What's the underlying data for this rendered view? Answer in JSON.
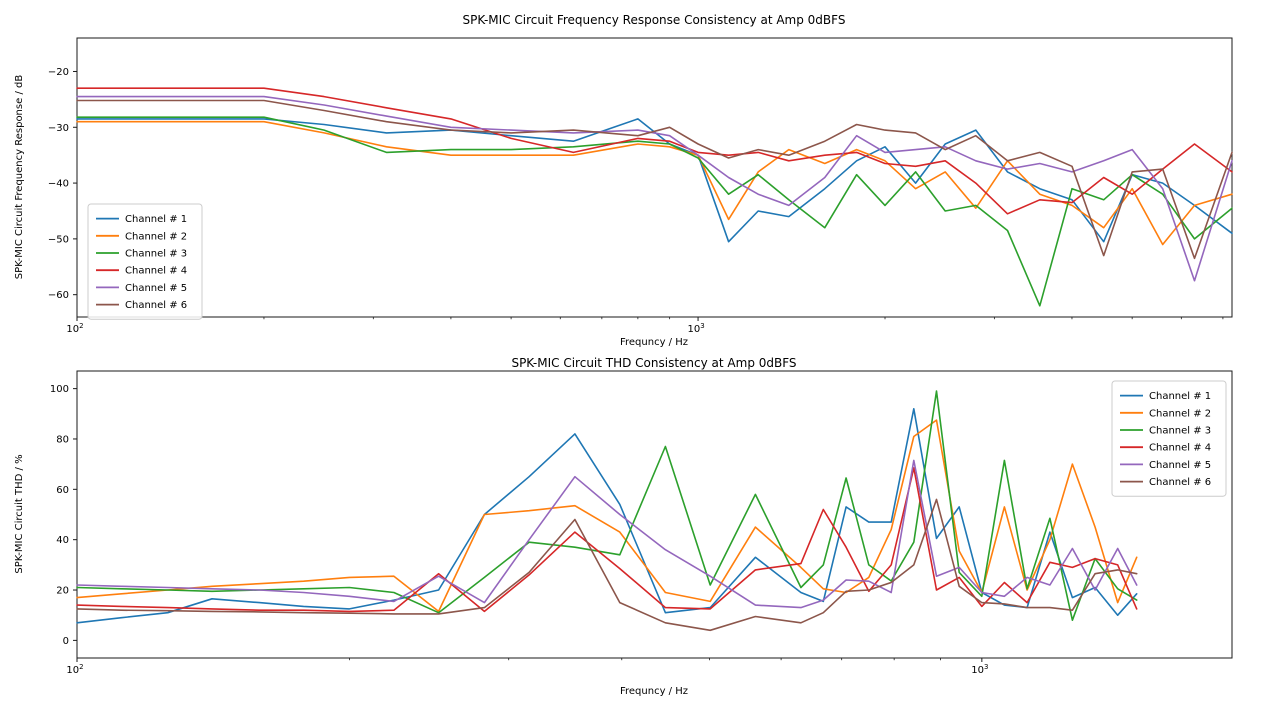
{
  "figure": {
    "background": "#ffffff",
    "text_color": "#000000",
    "spine_color": "#1a1a1a",
    "legend_border_color": "#cccccc"
  },
  "chart_data": [
    {
      "type": "line",
      "title": "SPK-MIC Circuit Frequency Response Consistency at Amp 0dBFS",
      "xlabel": "Frequncy / Hz",
      "ylabel": "SPK-MIC Circuit Frequency Response / dB",
      "xscale": "log",
      "grid": false,
      "xlim": [
        100,
        7240
      ],
      "ylim": [
        -64,
        -14
      ],
      "yticks": [
        -20,
        -30,
        -40,
        -50,
        -60
      ],
      "xticks": [
        {
          "value": 100,
          "label": "10^2"
        },
        {
          "value": 1000,
          "label": "10^3"
        }
      ],
      "legend": {
        "loc": "center left",
        "entries": [
          "Channel # 1",
          "Channel # 2",
          "Channel # 3",
          "Channel # 4",
          "Channel # 5",
          "Channel # 6"
        ]
      },
      "x": [
        100,
        125,
        160,
        200,
        250,
        315,
        400,
        500,
        630,
        800,
        900,
        1000,
        1120,
        1250,
        1400,
        1600,
        1800,
        2000,
        2240,
        2500,
        2800,
        3150,
        3550,
        4000,
        4500,
        5000,
        5600,
        6300,
        7240
      ],
      "series": [
        {
          "name": "Channel # 1",
          "color": "#1f77b4",
          "values": [
            -28.5,
            -28.5,
            -28.5,
            -28.5,
            -29.5,
            -31,
            -30.5,
            -31.5,
            -32.5,
            -28.5,
            -33,
            -35,
            -50.5,
            -45,
            -46,
            -41,
            -36,
            -33.5,
            -40,
            -33,
            -30.5,
            -38,
            -41,
            -43,
            -50.5,
            -38.5,
            -40,
            -44,
            -49
          ]
        },
        {
          "name": "Channel # 2",
          "color": "#ff7f0e",
          "values": [
            -29,
            -29,
            -29,
            -29,
            -31,
            -33.5,
            -35,
            -35,
            -35,
            -33,
            -33.5,
            -35,
            -46.5,
            -38,
            -34,
            -36.5,
            -34,
            -36,
            -41,
            -38,
            -44.5,
            -36,
            -42,
            -44,
            -48,
            -41,
            -51,
            -44,
            -42
          ]
        },
        {
          "name": "Channel # 3",
          "color": "#2ca02c",
          "values": [
            -28.2,
            -28.2,
            -28.2,
            -28.2,
            -30.5,
            -34.5,
            -34,
            -34,
            -33.5,
            -32.5,
            -33,
            -35.5,
            -42,
            -38.5,
            -43,
            -48,
            -38.5,
            -44,
            -38,
            -45,
            -44,
            -48.5,
            -62,
            -41,
            -43,
            -38.5,
            -42,
            -50,
            -44.5
          ]
        },
        {
          "name": "Channel # 4",
          "color": "#d62728",
          "values": [
            -23,
            -23,
            -23,
            -23,
            -24.5,
            -26.5,
            -28.5,
            -32,
            -34.5,
            -32,
            -32.5,
            -34.5,
            -35,
            -34.5,
            -36,
            -35,
            -34.5,
            -36.5,
            -37,
            -36,
            -40,
            -45.5,
            -43,
            -43.5,
            -39,
            -42,
            -37.5,
            -33,
            -38
          ]
        },
        {
          "name": "Channel # 5",
          "color": "#9467bd",
          "values": [
            -24.5,
            -24.5,
            -24.5,
            -24.5,
            -26,
            -28,
            -30,
            -30.5,
            -31,
            -30.5,
            -31.5,
            -35,
            -39,
            -42,
            -44,
            -39,
            -31.5,
            -34.5,
            -34,
            -33.5,
            -36,
            -37.5,
            -36.5,
            -38,
            -36,
            -34,
            -41,
            -57.5,
            -36
          ]
        },
        {
          "name": "Channel # 6",
          "color": "#8c564b",
          "values": [
            -25.2,
            -25.2,
            -25.2,
            -25.2,
            -27,
            -29,
            -30.5,
            -31,
            -30.5,
            -31.5,
            -30,
            -33,
            -35.5,
            -34,
            -35,
            -32.5,
            -29.5,
            -30.5,
            -31,
            -34,
            -31.5,
            -36,
            -34.5,
            -37,
            -53,
            -38,
            -37.5,
            -53.5,
            -34.5
          ]
        }
      ]
    },
    {
      "type": "line",
      "title": "SPK-MIC Circuit THD Consistency at Amp 0dBFS",
      "xlabel": "Frequncy / Hz",
      "ylabel": "SPK-MIC Circuit THD / %",
      "xscale": "log",
      "grid": false,
      "xlim": [
        100,
        1890
      ],
      "ylim": [
        -7,
        107
      ],
      "yticks": [
        0,
        20,
        40,
        60,
        80,
        100
      ],
      "xticks": [
        {
          "value": 100,
          "label": "10^2"
        },
        {
          "value": 1000,
          "label": "10^3"
        }
      ],
      "legend": {
        "loc": "upper right",
        "entries": [
          "Channel # 1",
          "Channel # 2",
          "Channel # 3",
          "Channel # 4",
          "Channel # 5",
          "Channel # 6"
        ]
      },
      "x": [
        100,
        112,
        126,
        141,
        159,
        178,
        200,
        224,
        251,
        282,
        316,
        355,
        398,
        447,
        501,
        562,
        631,
        668,
        708,
        750,
        794,
        841,
        891,
        944,
        1000,
        1059,
        1122,
        1189,
        1259,
        1334,
        1413,
        1483
      ],
      "series": [
        {
          "name": "Channel # 1",
          "color": "#1f77b4",
          "values": [
            7,
            9,
            11,
            16.5,
            15,
            13.5,
            12.5,
            16,
            20,
            50,
            65,
            82,
            54,
            11,
            13,
            33,
            19,
            15.5,
            53,
            47,
            47,
            92,
            40.5,
            53,
            19,
            14,
            13,
            43,
            17,
            21,
            10,
            18.5
          ]
        },
        {
          "name": "Channel # 2",
          "color": "#ff7f0e",
          "values": [
            17,
            18.5,
            20,
            21.5,
            22.5,
            23.5,
            25,
            25.5,
            11.5,
            50,
            51.5,
            53.5,
            43,
            19,
            15.5,
            45,
            29,
            20.5,
            19,
            25,
            44,
            81,
            87.5,
            35.5,
            19,
            53,
            20,
            40,
            70,
            45,
            15,
            33
          ]
        },
        {
          "name": "Channel # 3",
          "color": "#2ca02c",
          "values": [
            21,
            20.5,
            20,
            19.5,
            20,
            20.5,
            21,
            19,
            11,
            25,
            39,
            37,
            34,
            77,
            22,
            58,
            21,
            30,
            64.5,
            30,
            23.6,
            39,
            99,
            27,
            17.5,
            71.5,
            20.5,
            48.5,
            8,
            32.5,
            20.5,
            16
          ]
        },
        {
          "name": "Channel # 4",
          "color": "#d62728",
          "values": [
            14,
            13.5,
            13,
            12.5,
            12,
            12,
            11.5,
            12,
            26.5,
            11.5,
            26,
            43,
            28.5,
            13,
            12.5,
            28,
            30.5,
            52,
            37,
            19.5,
            30,
            68.5,
            20,
            25,
            13.5,
            23,
            15,
            31,
            29,
            32.5,
            30,
            12.5
          ]
        },
        {
          "name": "Channel # 5",
          "color": "#9467bd",
          "values": [
            22,
            21.5,
            21,
            20.5,
            20,
            19,
            17.5,
            15.5,
            25.5,
            15,
            40,
            65,
            50,
            36,
            25.5,
            14,
            13,
            16,
            24,
            23.5,
            19,
            71.5,
            25.5,
            29,
            19,
            17.5,
            25,
            22,
            36.5,
            20,
            36.5,
            22
          ]
        },
        {
          "name": "Channel # 6",
          "color": "#8c564b",
          "values": [
            12.5,
            12,
            11.8,
            11.5,
            11.3,
            11,
            10.8,
            10.5,
            10.5,
            13,
            27,
            48,
            15,
            7,
            4,
            9.5,
            7,
            11,
            19.5,
            20,
            23,
            30,
            56,
            21.5,
            15,
            14.5,
            13,
            13,
            12,
            26.5,
            28,
            26.5
          ]
        }
      ]
    }
  ]
}
